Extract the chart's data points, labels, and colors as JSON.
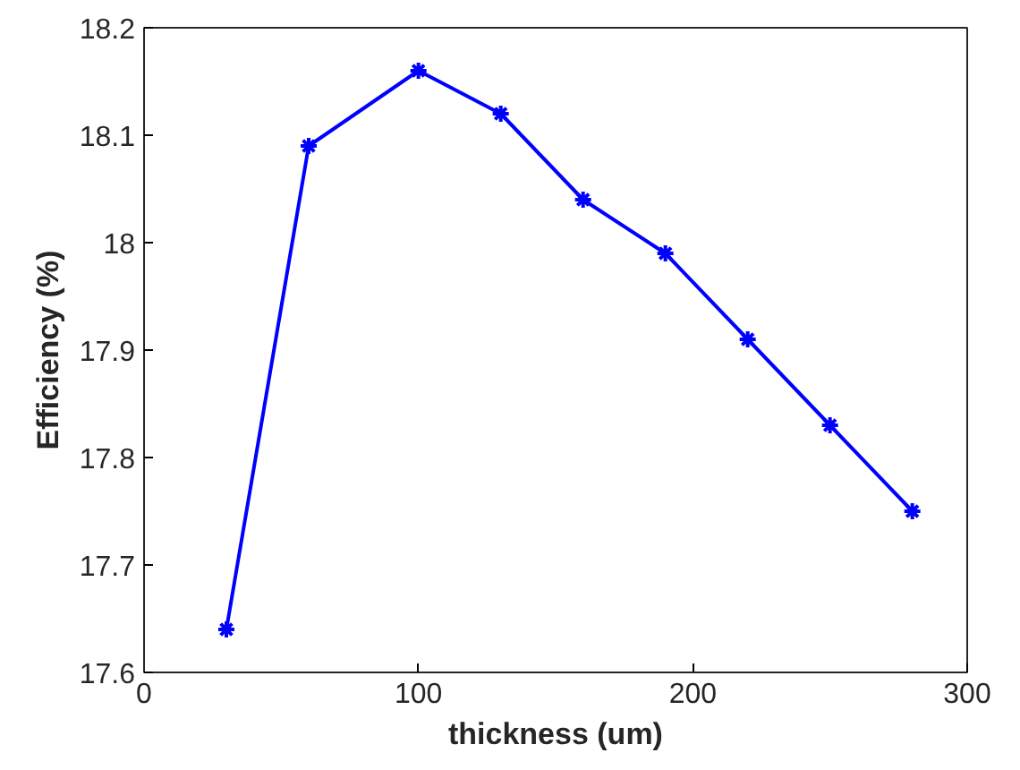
{
  "chart_data": {
    "type": "line",
    "xlabel": "thickness (um)",
    "ylabel": "Efficiency (%)",
    "x": [
      30,
      60,
      100,
      130,
      160,
      190,
      220,
      250,
      280
    ],
    "series": [
      {
        "color": "#0000ff",
        "values": [
          17.64,
          18.09,
          18.16,
          18.12,
          18.04,
          17.99,
          17.91,
          17.83,
          17.75
        ]
      }
    ],
    "xlim": [
      0,
      300
    ],
    "xticks": [
      0,
      100,
      200,
      300
    ],
    "ylim": [
      17.6,
      18.2
    ],
    "yticks": [
      {
        "value": 17.6,
        "label": "17.6"
      },
      {
        "value": 17.7,
        "label": "17.7"
      },
      {
        "value": 17.8,
        "label": "17.8"
      },
      {
        "value": 17.9,
        "label": "17.9"
      },
      {
        "value": 18.0,
        "label": "18"
      },
      {
        "value": 18.1,
        "label": "18.1"
      },
      {
        "value": 18.2,
        "label": "18.2"
      }
    ],
    "grid": false,
    "marker": "cross",
    "line_style": "solid"
  }
}
